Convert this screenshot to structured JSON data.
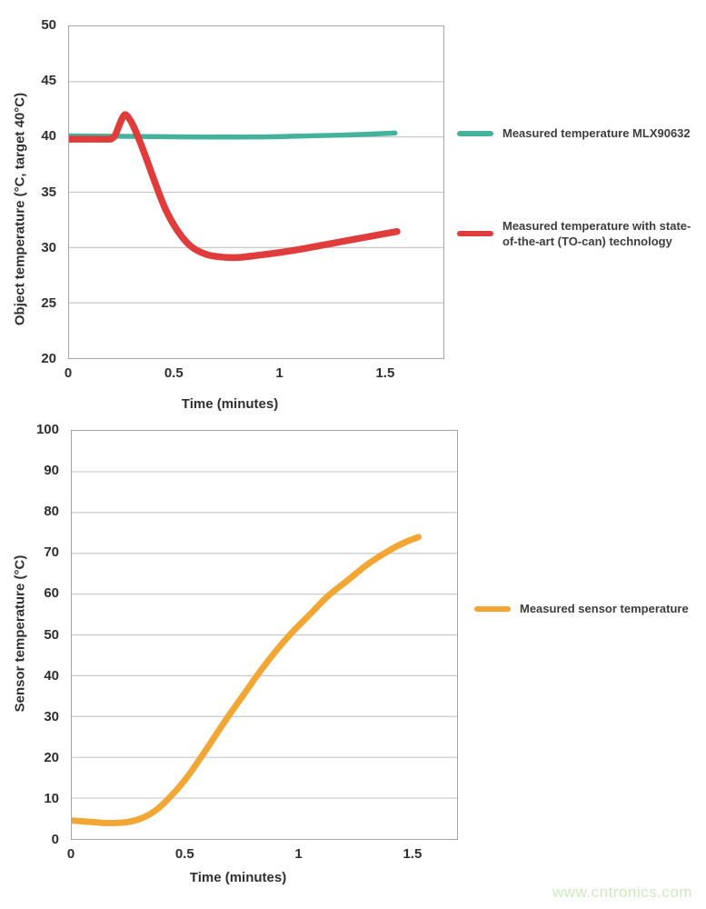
{
  "page": {
    "watermark": "www.cntronics.com"
  },
  "colors": {
    "grid": "#c9c9c9",
    "axis_border": "#a5a5a5",
    "tick_text": "#2f2f2f",
    "legend_text": "#3d3d3d",
    "teal": "#45b29b",
    "red": "#e03c3c",
    "orange": "#f2a735",
    "watermark_green": "#cde9bd"
  },
  "chart_data": [
    {
      "type": "line",
      "title": "",
      "xlabel": "Time (minutes)",
      "ylabel": "Object temperature (°C, target 40°C)",
      "xlim": [
        0,
        1.78
      ],
      "ylim": [
        20,
        50
      ],
      "grid": "horizontal",
      "legend_position": "right",
      "xtick_values": [
        0,
        0.5,
        1,
        1.5
      ],
      "xtick_labels": [
        "0",
        "0.5",
        "1",
        "1.5"
      ],
      "ytick_values": [
        20,
        25,
        30,
        35,
        40,
        45,
        50
      ],
      "ytick_labels": [
        "20",
        "25",
        "30",
        "35",
        "40",
        "45",
        "50"
      ],
      "series": [
        {
          "name": "Measured temperature MLX90632",
          "label": "Measured temperature MLX90632",
          "color": "#45b29b",
          "points": [
            [
              0,
              40.1
            ],
            [
              0.3,
              40.05
            ],
            [
              0.6,
              40.0
            ],
            [
              0.9,
              40.0
            ],
            [
              1.15,
              40.1
            ],
            [
              1.35,
              40.2
            ],
            [
              1.55,
              40.35
            ]
          ]
        },
        {
          "name": "Measured temperature with state-of-the-art (TO-can) technology",
          "label": "Measured temperature with state-\nof-the-art (TO-can) technology",
          "color": "#e03c3c",
          "points": [
            [
              0,
              39.8
            ],
            [
              0.1,
              39.8
            ],
            [
              0.19,
              39.8
            ],
            [
              0.205,
              39.9
            ],
            [
              0.22,
              40.2
            ],
            [
              0.25,
              41.6
            ],
            [
              0.27,
              42.0
            ],
            [
              0.3,
              41.2
            ],
            [
              0.33,
              39.9
            ],
            [
              0.37,
              37.9
            ],
            [
              0.41,
              35.8
            ],
            [
              0.46,
              33.4
            ],
            [
              0.52,
              31.4
            ],
            [
              0.58,
              30.1
            ],
            [
              0.65,
              29.4
            ],
            [
              0.72,
              29.15
            ],
            [
              0.8,
              29.1
            ],
            [
              0.9,
              29.3
            ],
            [
              1.0,
              29.55
            ],
            [
              1.1,
              29.85
            ],
            [
              1.2,
              30.2
            ],
            [
              1.3,
              30.55
            ],
            [
              1.4,
              30.9
            ],
            [
              1.5,
              31.25
            ],
            [
              1.56,
              31.45
            ]
          ]
        }
      ]
    },
    {
      "type": "line",
      "title": "",
      "xlabel": "Time (minutes)",
      "ylabel": "Sensor temperature (°C)",
      "xlim": [
        0,
        1.7
      ],
      "ylim": [
        0,
        100
      ],
      "grid": "horizontal",
      "legend_position": "right",
      "xtick_values": [
        0,
        0.5,
        1,
        1.5
      ],
      "xtick_labels": [
        "0",
        "0.5",
        "1",
        "1.5"
      ],
      "ytick_values": [
        0,
        10,
        20,
        30,
        40,
        50,
        60,
        70,
        80,
        90,
        100
      ],
      "ytick_labels": [
        "0",
        "10",
        "20",
        "30",
        "40",
        "50",
        "60",
        "70",
        "80",
        "90",
        "100"
      ],
      "series": [
        {
          "name": "Measured sensor temperature",
          "label": "Measured sensor temperature",
          "color": "#f2a735",
          "points": [
            [
              0,
              4.5
            ],
            [
              0.08,
              4.2
            ],
            [
              0.16,
              3.9
            ],
            [
              0.24,
              4.1
            ],
            [
              0.3,
              4.9
            ],
            [
              0.36,
              6.6
            ],
            [
              0.42,
              9.5
            ],
            [
              0.5,
              14.5
            ],
            [
              0.57,
              20
            ],
            [
              0.63,
              25
            ],
            [
              0.69,
              30
            ],
            [
              0.76,
              35.5
            ],
            [
              0.83,
              41
            ],
            [
              0.9,
              46
            ],
            [
              0.97,
              50.5
            ],
            [
              1.05,
              55
            ],
            [
              1.13,
              59.5
            ],
            [
              1.22,
              63.5
            ],
            [
              1.31,
              67.5
            ],
            [
              1.41,
              71
            ],
            [
              1.47,
              72.7
            ],
            [
              1.53,
              74
            ]
          ]
        }
      ]
    }
  ]
}
